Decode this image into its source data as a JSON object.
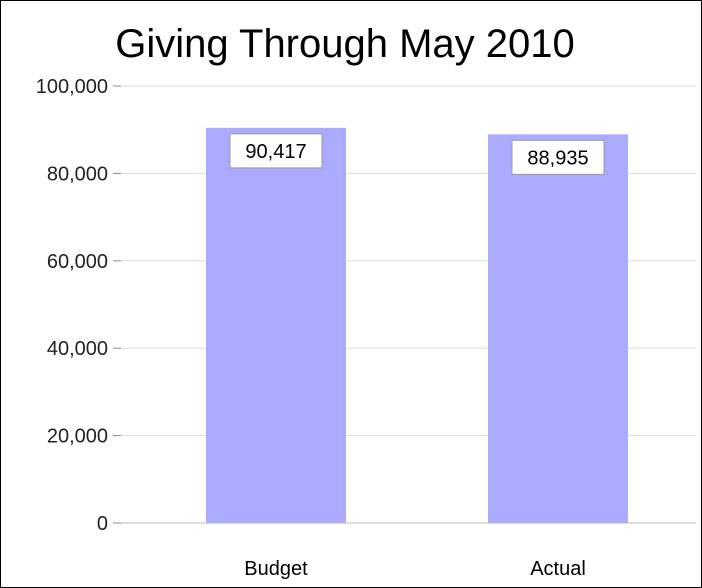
{
  "chart_data": {
    "type": "bar",
    "title": "Giving Through May 2010",
    "categories": [
      "Budget",
      "Actual"
    ],
    "values": [
      90417,
      88935
    ],
    "data_labels": [
      "90,417",
      "88,935"
    ],
    "ylim": [
      0,
      100000
    ],
    "yticks": [
      0,
      20000,
      40000,
      60000,
      80000,
      100000
    ],
    "ytick_labels": [
      "0",
      "20,000",
      "40,000",
      "60,000",
      "80,000",
      "100,000"
    ],
    "xlabel": "",
    "ylabel": "",
    "grid": true,
    "legend": "none",
    "bar_color": "#aaaaff",
    "grid_color": "#dddddd"
  }
}
